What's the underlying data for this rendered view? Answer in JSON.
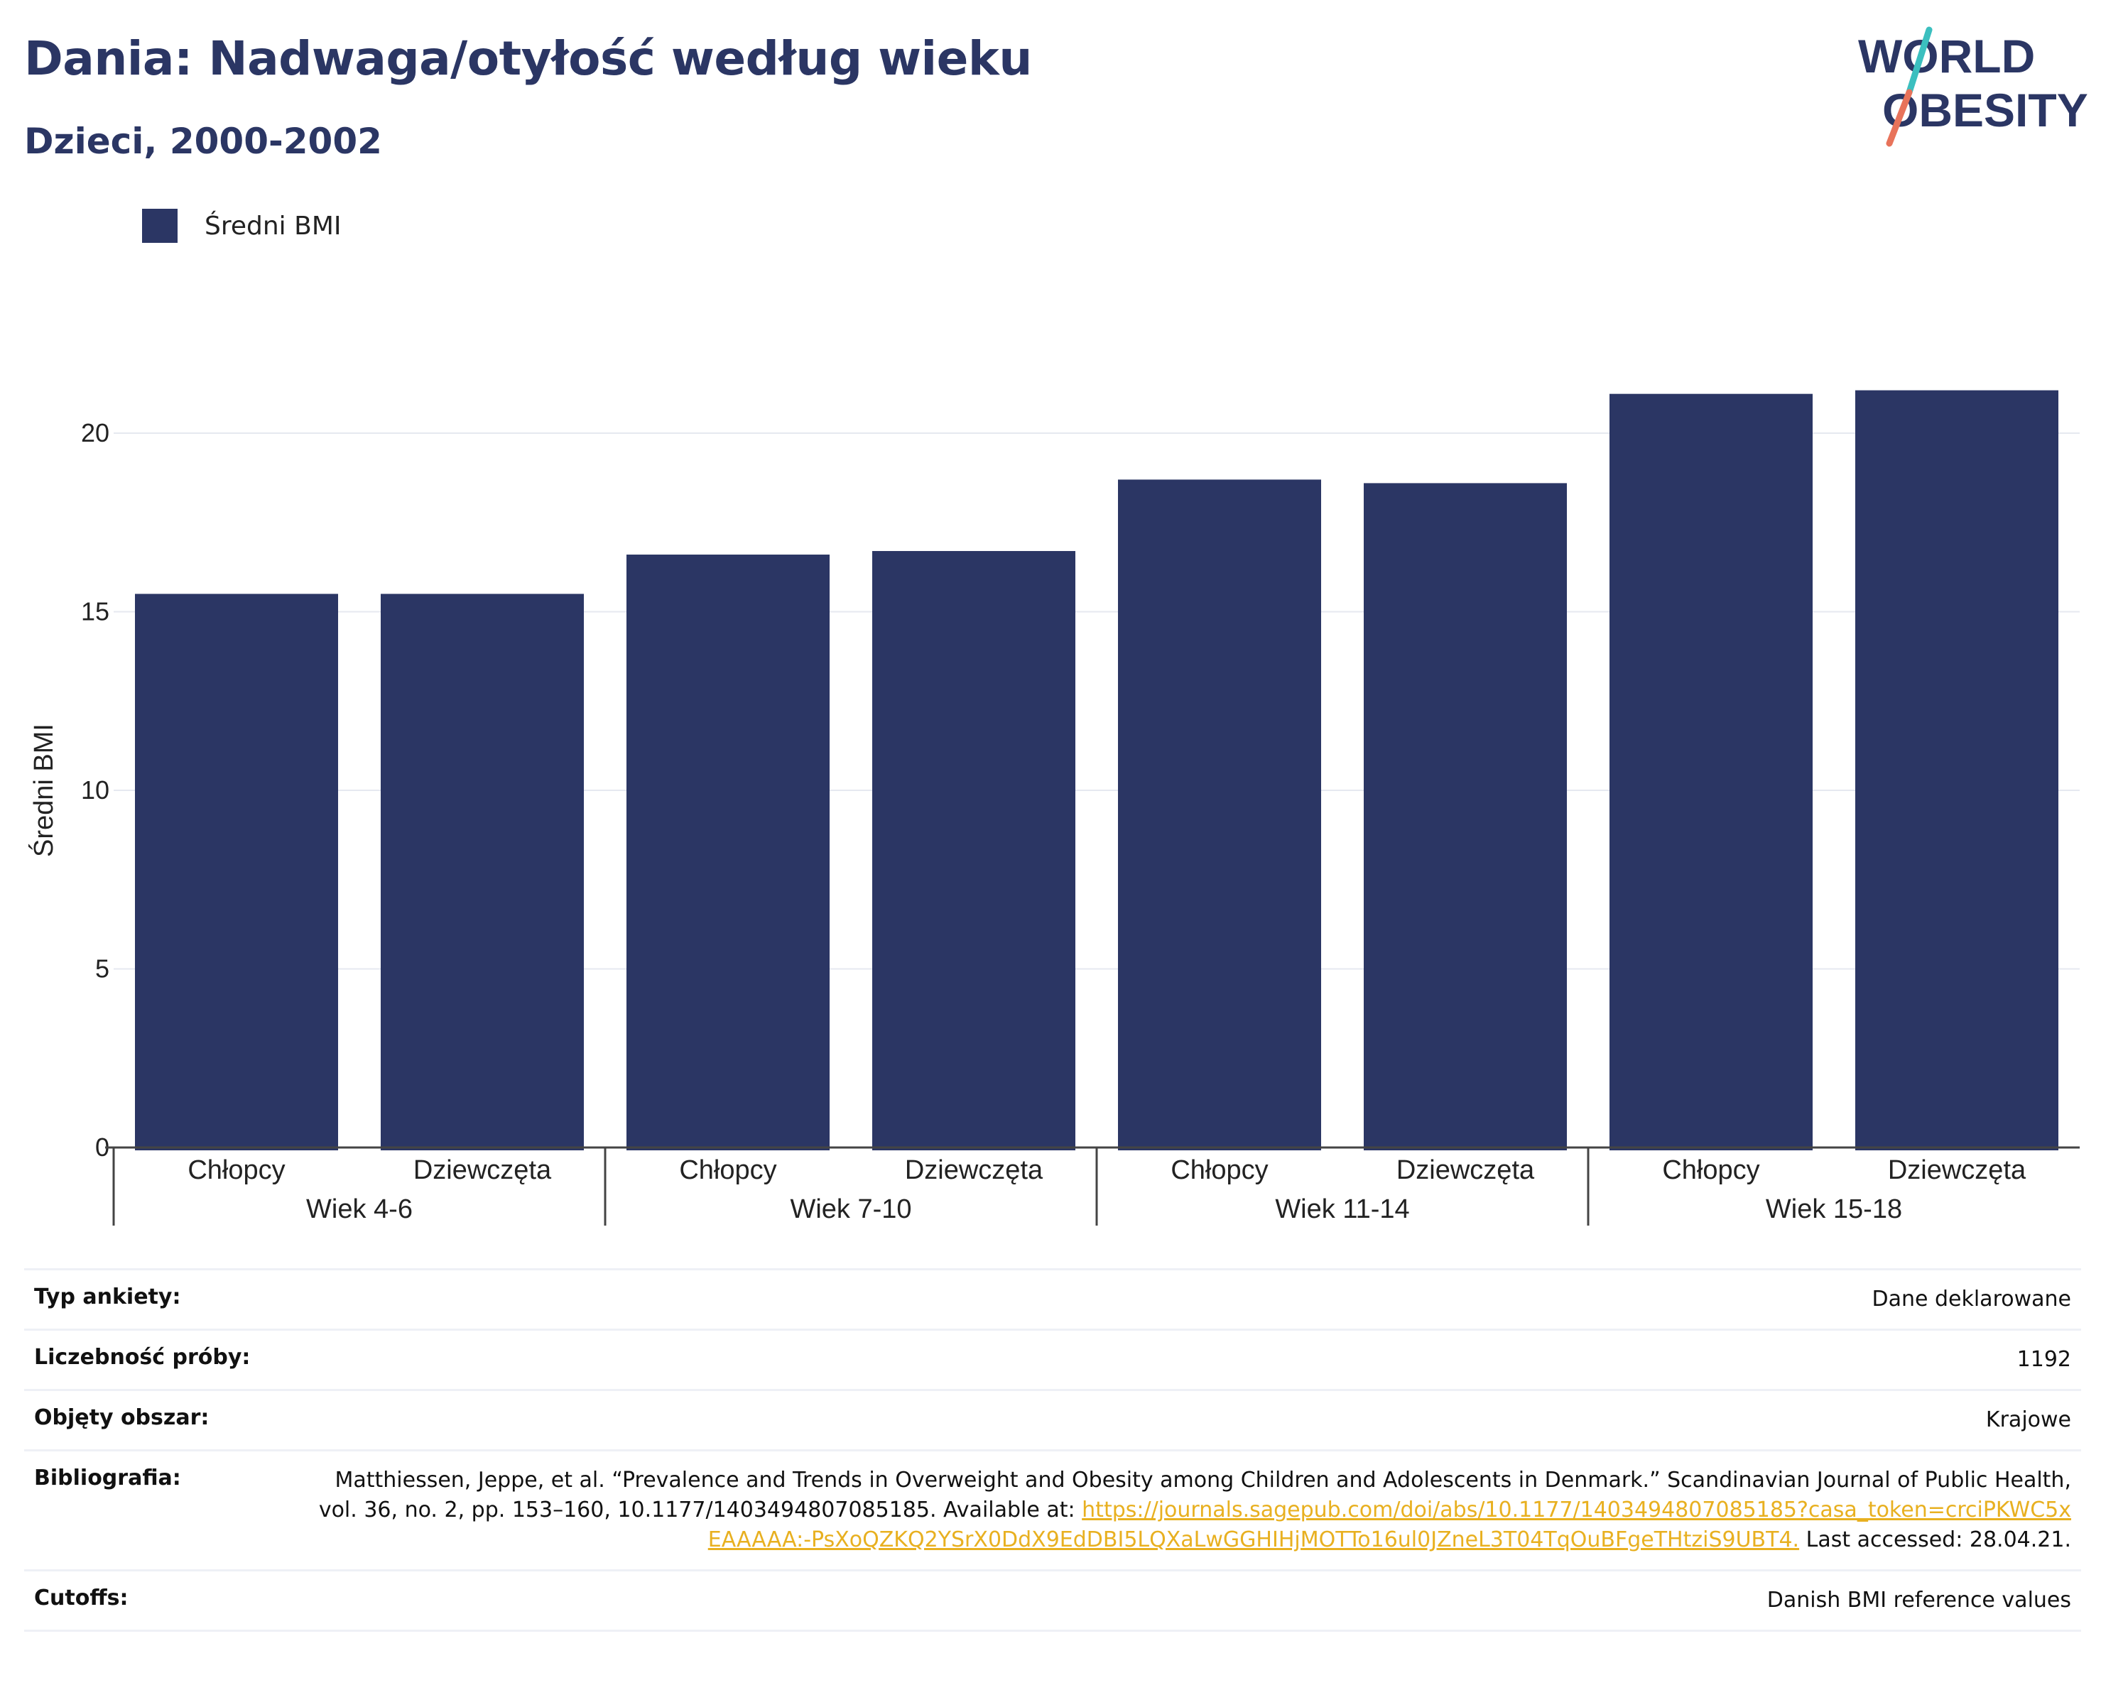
{
  "header": {
    "title": "Dania: Nadwaga/otyłość według wieku",
    "subtitle": "Dzieci, 2000-2002"
  },
  "logo": {
    "line1": "WORLD",
    "line2": "OBESITY",
    "colors": {
      "text": "#2b3664",
      "slash_top": "#3bbfbf",
      "slash_bottom": "#e8735a"
    }
  },
  "legend": {
    "label": "Średni BMI",
    "color": "#2b3664"
  },
  "chart_data": {
    "type": "bar",
    "ylabel": "Średni BMI",
    "ylim": [
      0,
      23
    ],
    "yticks": [
      0,
      5,
      10,
      15,
      20
    ],
    "grid": true,
    "bar_color": "#2b3664",
    "groups": [
      {
        "label": "Wiek 4-6",
        "categories": [
          "Chłopcy",
          "Dziewczęta"
        ],
        "values": [
          15.5,
          15.5
        ]
      },
      {
        "label": "Wiek 7-10",
        "categories": [
          "Chłopcy",
          "Dziewczęta"
        ],
        "values": [
          16.6,
          16.7
        ]
      },
      {
        "label": "Wiek 11-14",
        "categories": [
          "Chłopcy",
          "Dziewczęta"
        ],
        "values": [
          18.7,
          18.6
        ]
      },
      {
        "label": "Wiek 15-18",
        "categories": [
          "Chłopcy",
          "Dziewczęta"
        ],
        "values": [
          21.1,
          21.2
        ]
      }
    ]
  },
  "info": {
    "survey_type": {
      "label": "Typ ankiety:",
      "value": "Dane deklarowane"
    },
    "sample_size": {
      "label": "Liczebność próby:",
      "value": "1192"
    },
    "area": {
      "label": "Objęty obszar:",
      "value": "Krajowe"
    },
    "bibliography": {
      "label": "Bibliografia:",
      "text_before": "Matthiessen, Jeppe, et al. “Prevalence and Trends in Overweight and Obesity among Children and Adolescents in Denmark.” Scandinavian Journal of Public Health, vol. 36, no. 2, pp. 153–160, 10.1177/1403494807085185. Available at: ",
      "link": "https://journals.sagepub.com/doi/abs/10.1177/1403494807085185?casa_token=crciPKWC5xEAAAAA:-PsXoQZKQ2YSrX0DdX9EdDBI5LQXaLwGGHIHjMOTTo16ul0JZneL3T04TqOuBFgeTHtziS9UBT4.",
      "text_after": " Last accessed: 28.04.21."
    },
    "cutoffs": {
      "label": "Cutoffs:",
      "value": "Danish BMI reference values"
    }
  }
}
